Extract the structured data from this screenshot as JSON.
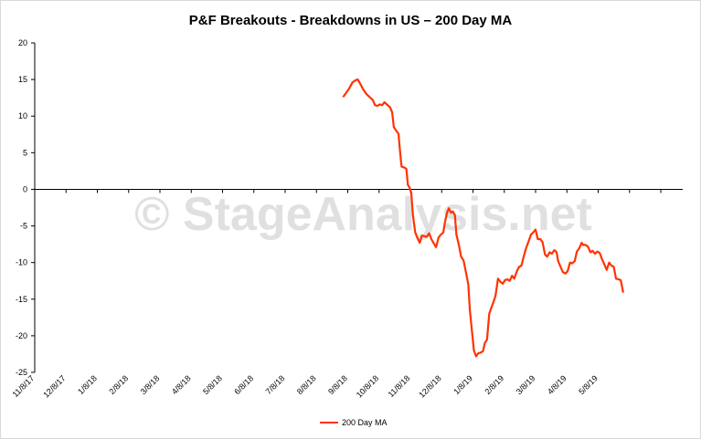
{
  "chart_data": {
    "type": "line",
    "title": "P&F Breakouts - Breakdowns in US – 200 Day MA",
    "watermark": "© StageAnalysis.net",
    "xlabel": "",
    "ylabel": "",
    "ylim": [
      -25,
      20
    ],
    "yticks": [
      20,
      15,
      10,
      5,
      0,
      -5,
      -10,
      -15,
      -20,
      -25
    ],
    "xticks": [
      "11/8/17",
      "12/8/17",
      "1/8/18",
      "2/8/18",
      "3/8/18",
      "4/8/18",
      "5/8/18",
      "6/8/18",
      "7/8/18",
      "8/8/18",
      "9/8/18",
      "10/8/18",
      "11/8/18",
      "12/8/18",
      "1/8/19",
      "2/8/19",
      "3/8/19",
      "4/8/19",
      "5/8/19"
    ],
    "x_range": [
      0,
      20.7
    ],
    "legend": "bottom",
    "grid": false,
    "series": [
      {
        "name": "200 Day MA",
        "color": "#ff3300",
        "points": [
          [
            9.85,
            12.6
          ],
          [
            9.95,
            13.2
          ],
          [
            10.05,
            13.8
          ],
          [
            10.15,
            14.6
          ],
          [
            10.25,
            14.9
          ],
          [
            10.32,
            15.0
          ],
          [
            10.4,
            14.4
          ],
          [
            10.5,
            13.6
          ],
          [
            10.6,
            13.0
          ],
          [
            10.7,
            12.6
          ],
          [
            10.8,
            12.2
          ],
          [
            10.87,
            11.5
          ],
          [
            10.95,
            11.4
          ],
          [
            11.02,
            11.6
          ],
          [
            11.1,
            11.5
          ],
          [
            11.17,
            11.9
          ],
          [
            11.25,
            11.6
          ],
          [
            11.35,
            11.2
          ],
          [
            11.42,
            10.5
          ],
          [
            11.47,
            8.5
          ],
          [
            11.55,
            8.0
          ],
          [
            11.62,
            7.6
          ],
          [
            11.67,
            5.2
          ],
          [
            11.72,
            3.1
          ],
          [
            11.8,
            3.0
          ],
          [
            11.87,
            2.8
          ],
          [
            11.92,
            0.6
          ],
          [
            11.98,
            0.2
          ],
          [
            12.03,
            -0.5
          ],
          [
            12.08,
            -3.5
          ],
          [
            12.15,
            -5.8
          ],
          [
            12.22,
            -6.6
          ],
          [
            12.3,
            -7.3
          ],
          [
            12.37,
            -6.3
          ],
          [
            12.45,
            -6.4
          ],
          [
            12.52,
            -6.5
          ],
          [
            12.6,
            -6.0
          ],
          [
            12.67,
            -6.8
          ],
          [
            12.75,
            -7.4
          ],
          [
            12.82,
            -7.9
          ],
          [
            12.9,
            -6.6
          ],
          [
            12.97,
            -6.2
          ],
          [
            13.05,
            -5.9
          ],
          [
            13.1,
            -4.6
          ],
          [
            13.17,
            -3.2
          ],
          [
            13.23,
            -2.6
          ],
          [
            13.3,
            -3.2
          ],
          [
            13.35,
            -3.0
          ],
          [
            13.42,
            -3.5
          ],
          [
            13.47,
            -6.2
          ],
          [
            13.55,
            -7.6
          ],
          [
            13.62,
            -9.2
          ],
          [
            13.7,
            -9.7
          ],
          [
            13.77,
            -11.2
          ],
          [
            13.85,
            -13.0
          ],
          [
            13.9,
            -16.5
          ],
          [
            13.97,
            -19.5
          ],
          [
            14.03,
            -22.0
          ],
          [
            14.1,
            -22.8
          ],
          [
            14.17,
            -22.4
          ],
          [
            14.25,
            -22.3
          ],
          [
            14.32,
            -22.1
          ],
          [
            14.38,
            -21.0
          ],
          [
            14.45,
            -20.5
          ],
          [
            14.52,
            -17.0
          ],
          [
            14.6,
            -16.0
          ],
          [
            14.67,
            -15.2
          ],
          [
            14.72,
            -14.5
          ],
          [
            14.8,
            -12.2
          ],
          [
            14.87,
            -12.6
          ],
          [
            14.95,
            -12.9
          ],
          [
            15.02,
            -12.4
          ],
          [
            15.1,
            -12.3
          ],
          [
            15.17,
            -12.5
          ],
          [
            15.25,
            -11.8
          ],
          [
            15.32,
            -12.2
          ],
          [
            15.4,
            -11.2
          ],
          [
            15.47,
            -10.6
          ],
          [
            15.55,
            -10.4
          ],
          [
            15.62,
            -9.2
          ],
          [
            15.7,
            -8.0
          ],
          [
            15.77,
            -7.2
          ],
          [
            15.85,
            -6.2
          ],
          [
            15.92,
            -5.9
          ],
          [
            16.0,
            -5.5
          ],
          [
            16.07,
            -6.8
          ],
          [
            16.15,
            -6.8
          ],
          [
            16.22,
            -7.2
          ],
          [
            16.3,
            -8.9
          ],
          [
            16.37,
            -9.2
          ],
          [
            16.45,
            -8.6
          ],
          [
            16.52,
            -8.8
          ],
          [
            16.6,
            -8.3
          ],
          [
            16.67,
            -8.6
          ],
          [
            16.72,
            -9.8
          ],
          [
            16.8,
            -10.6
          ],
          [
            16.87,
            -11.3
          ],
          [
            16.95,
            -11.5
          ],
          [
            17.02,
            -11.2
          ],
          [
            17.1,
            -10.0
          ],
          [
            17.17,
            -10.1
          ],
          [
            17.25,
            -9.8
          ],
          [
            17.32,
            -8.5
          ],
          [
            17.4,
            -8.0
          ],
          [
            17.47,
            -7.3
          ],
          [
            17.52,
            -7.6
          ],
          [
            17.6,
            -7.6
          ],
          [
            17.67,
            -7.8
          ],
          [
            17.75,
            -8.6
          ],
          [
            17.82,
            -8.4
          ],
          [
            17.9,
            -8.8
          ],
          [
            17.97,
            -8.5
          ],
          [
            18.05,
            -8.7
          ],
          [
            18.12,
            -9.5
          ],
          [
            18.2,
            -10.3
          ],
          [
            18.27,
            -11.0
          ],
          [
            18.35,
            -10.0
          ],
          [
            18.42,
            -10.4
          ],
          [
            18.5,
            -10.6
          ],
          [
            18.57,
            -12.2
          ],
          [
            18.65,
            -12.3
          ],
          [
            18.72,
            -12.4
          ],
          [
            18.8,
            -14.1
          ]
        ]
      }
    ]
  }
}
